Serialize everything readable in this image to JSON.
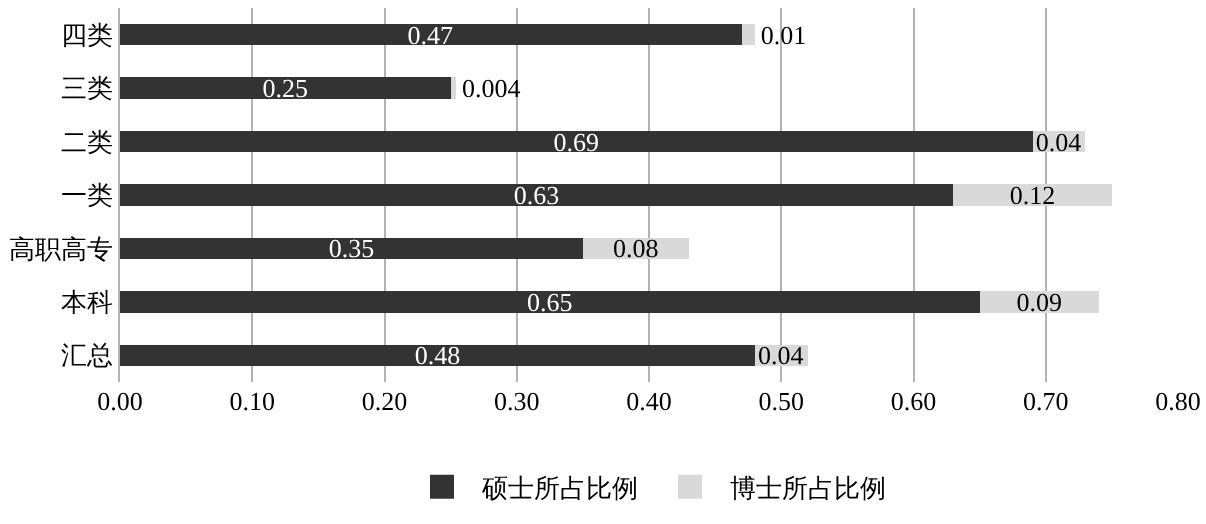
{
  "chart_data": {
    "type": "bar",
    "orientation": "horizontal",
    "stacked": true,
    "categories": [
      "四类",
      "三类",
      "二类",
      "一类",
      "高职高专",
      "本科",
      "汇总"
    ],
    "series": [
      {
        "name": "硕士所占比例",
        "color": "#333333",
        "values": [
          0.47,
          0.25,
          0.69,
          0.63,
          0.35,
          0.65,
          0.48
        ]
      },
      {
        "name": "博士所占比例",
        "color": "#d9d9d9",
        "values": [
          0.01,
          0.004,
          0.04,
          0.12,
          0.08,
          0.09,
          0.04
        ]
      }
    ],
    "xlim": [
      0,
      0.8
    ],
    "xticks": [
      {
        "value": 0,
        "label": "0.00"
      },
      {
        "value": 0.1,
        "label": "0.10"
      },
      {
        "value": 0.2,
        "label": "0.20"
      },
      {
        "value": 0.3,
        "label": "0.30"
      },
      {
        "value": 0.4,
        "label": "0.40"
      },
      {
        "value": 0.5,
        "label": "0.50"
      },
      {
        "value": 0.6,
        "label": "0.60"
      },
      {
        "value": 0.7,
        "label": "0.70"
      },
      {
        "value": 0.8,
        "label": "0.80"
      }
    ],
    "grid": "x",
    "legend": "bottom",
    "data_labels": true
  }
}
